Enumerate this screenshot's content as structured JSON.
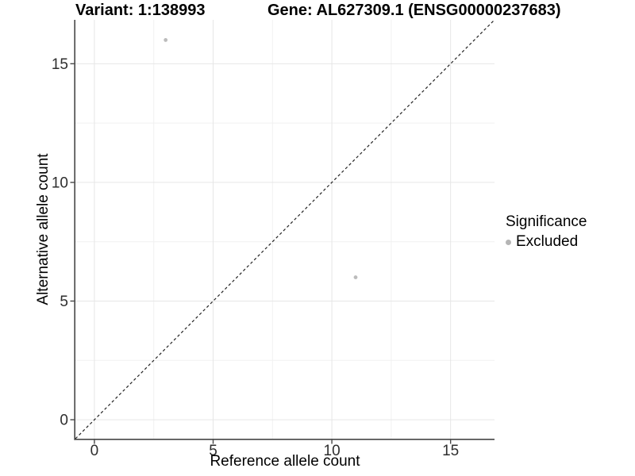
{
  "chart_data": {
    "type": "scatter",
    "title_left": "Variant: 1:138993",
    "title_right": "Gene: AL627309.1 (ENSG00000237683)",
    "xlabel": "Reference allele count",
    "ylabel": "Alternative allele count",
    "xlim": [
      -0.8,
      16.85
    ],
    "ylim": [
      -0.8,
      16.85
    ],
    "x_ticks": [
      0,
      5,
      10,
      15
    ],
    "y_ticks": [
      0,
      5,
      10,
      15
    ],
    "x_minor_ticks": [
      2.5,
      7.5,
      12.5
    ],
    "y_minor_ticks": [
      2.5,
      7.5,
      12.5
    ],
    "grid": true,
    "series": [
      {
        "name": "Excluded",
        "color": "#bcbcbc",
        "points": [
          {
            "x": 3,
            "y": 16
          },
          {
            "x": 11,
            "y": 6
          }
        ]
      }
    ],
    "reference_line": {
      "kind": "identity",
      "style": "dashed",
      "color": "#222222"
    },
    "legend": {
      "title": "Significance",
      "position": "right-middle",
      "items": [
        {
          "label": "Excluded",
          "color": "#b5b5b5",
          "marker": "circle"
        }
      ]
    },
    "style": {
      "point_color": "#bcbcbc",
      "grid_major_color": "#e6e6e6",
      "grid_minor_color": "#f1f1f1",
      "axis_line_color": "#464646",
      "tick_mark_color": "#464646",
      "tick_label_color": "#2e2e2e",
      "text_color": "#000000",
      "background_color": "#ffffff"
    }
  }
}
